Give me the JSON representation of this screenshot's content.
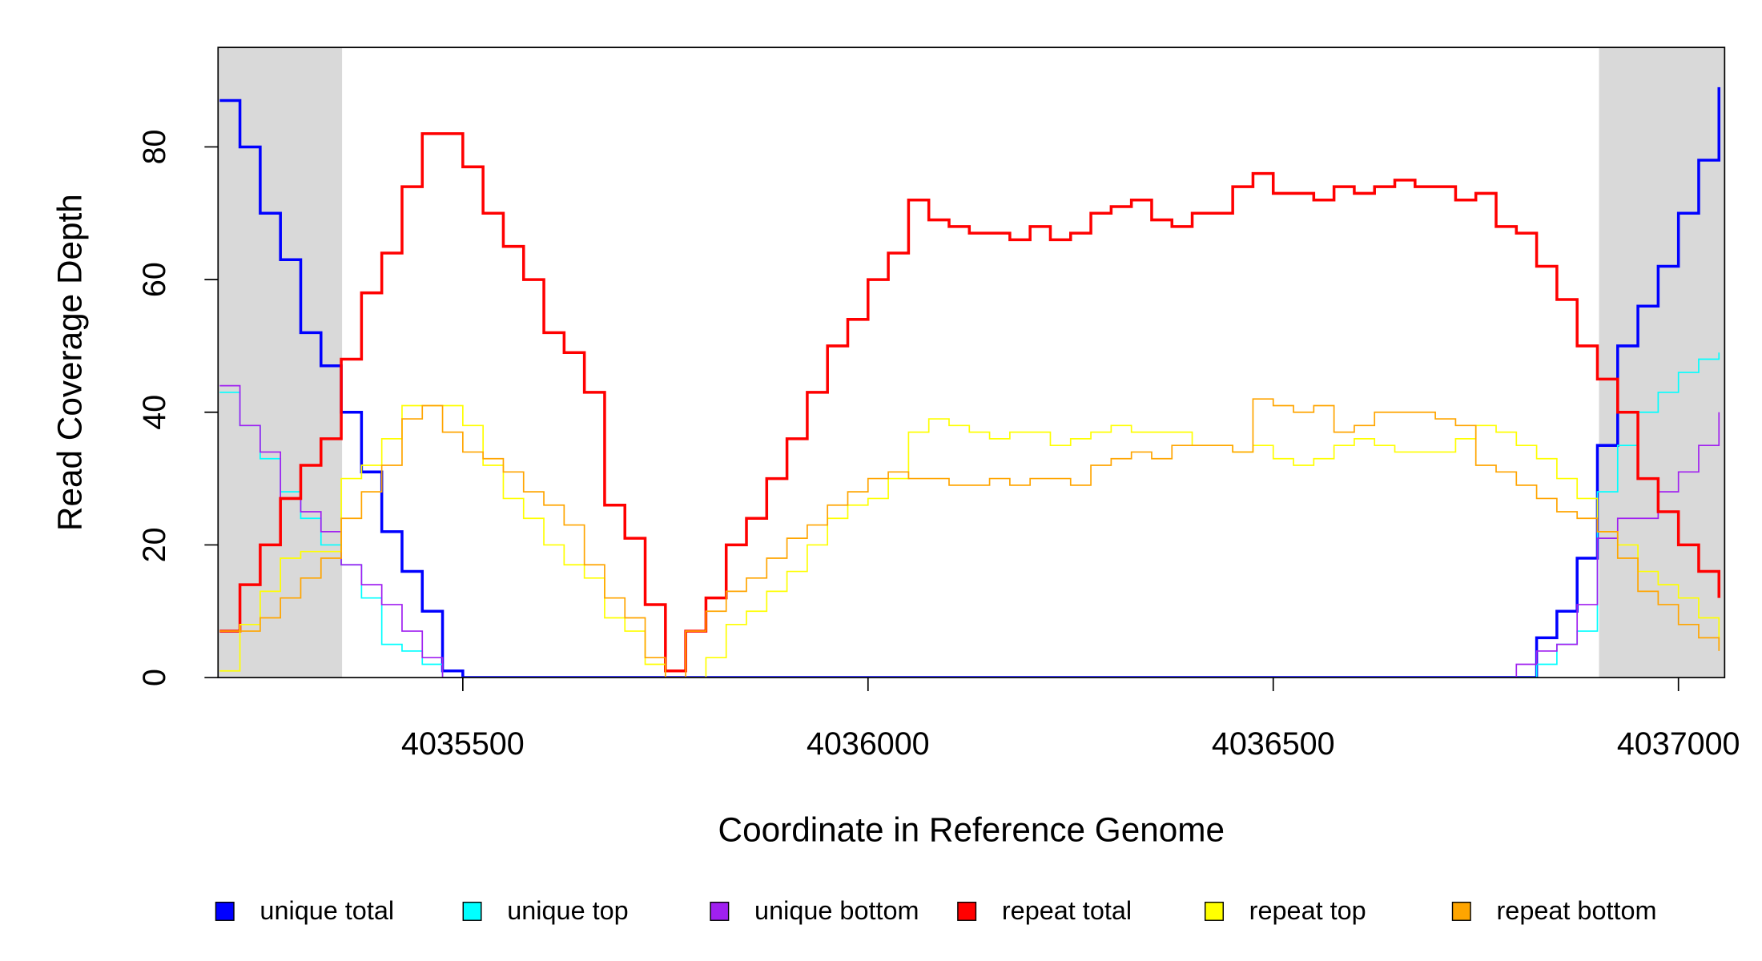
{
  "chart_data": {
    "type": "step",
    "xlabel": "Coordinate in Reference Genome",
    "ylabel": "Read Coverage Depth",
    "xlim": [
      4035198,
      4037057
    ],
    "ylim": [
      0,
      95
    ],
    "xticks": [
      4035500,
      4036000,
      4036500,
      4037000
    ],
    "yticks": [
      0,
      20,
      40,
      60,
      80
    ],
    "shaded_regions": [
      [
        4035198,
        4035351
      ],
      [
        4036902,
        4037057
      ]
    ],
    "shade_color": "#d9d9d9",
    "legend": "bottom",
    "x": [
      4035200,
      4035225,
      4035250,
      4035275,
      4035300,
      4035325,
      4035350,
      4035375,
      4035400,
      4035425,
      4035450,
      4035475,
      4035500,
      4035525,
      4035550,
      4035575,
      4035600,
      4035625,
      4035650,
      4035675,
      4035700,
      4035725,
      4035750,
      4035775,
      4035800,
      4035825,
      4035850,
      4035875,
      4035900,
      4035925,
      4035950,
      4035975,
      4036000,
      4036025,
      4036050,
      4036075,
      4036100,
      4036125,
      4036150,
      4036175,
      4036200,
      4036225,
      4036250,
      4036275,
      4036300,
      4036325,
      4036350,
      4036375,
      4036400,
      4036425,
      4036450,
      4036475,
      4036500,
      4036525,
      4036550,
      4036575,
      4036600,
      4036625,
      4036650,
      4036675,
      4036700,
      4036725,
      4036750,
      4036775,
      4036800,
      4036825,
      4036850,
      4036875,
      4036900,
      4036925,
      4036950,
      4036975,
      4037000,
      4037025,
      4037050
    ],
    "series": [
      {
        "name": "unique total",
        "color": "#0000ff",
        "width": 2.5,
        "values": [
          87,
          80,
          70,
          63,
          52,
          47,
          40,
          31,
          22,
          16,
          10,
          1,
          0,
          0,
          0,
          0,
          0,
          0,
          0,
          0,
          0,
          0,
          0,
          0,
          0,
          0,
          0,
          0,
          0,
          0,
          0,
          0,
          0,
          0,
          0,
          0,
          0,
          0,
          0,
          0,
          0,
          0,
          0,
          0,
          0,
          0,
          0,
          0,
          0,
          0,
          0,
          0,
          0,
          0,
          0,
          0,
          0,
          0,
          0,
          0,
          0,
          0,
          0,
          0,
          0,
          6,
          10,
          18,
          35,
          50,
          56,
          62,
          70,
          78,
          89
        ]
      },
      {
        "name": "unique top",
        "color": "#00ffff",
        "width": 1.2,
        "values": [
          43,
          38,
          33,
          28,
          24,
          20,
          17,
          12,
          5,
          4,
          2,
          0,
          0,
          0,
          0,
          0,
          0,
          0,
          0,
          0,
          0,
          0,
          0,
          0,
          0,
          0,
          0,
          0,
          0,
          0,
          0,
          0,
          0,
          0,
          0,
          0,
          0,
          0,
          0,
          0,
          0,
          0,
          0,
          0,
          0,
          0,
          0,
          0,
          0,
          0,
          0,
          0,
          0,
          0,
          0,
          0,
          0,
          0,
          0,
          0,
          0,
          0,
          0,
          0,
          0,
          2,
          5,
          7,
          28,
          35,
          40,
          43,
          46,
          48,
          49
        ]
      },
      {
        "name": "unique bottom",
        "color": "#a020f0",
        "width": 1.2,
        "values": [
          44,
          38,
          34,
          27,
          25,
          22,
          17,
          14,
          11,
          7,
          3,
          0,
          0,
          0,
          0,
          0,
          0,
          0,
          0,
          0,
          0,
          0,
          0,
          0,
          0,
          0,
          0,
          0,
          0,
          0,
          0,
          0,
          0,
          0,
          0,
          0,
          0,
          0,
          0,
          0,
          0,
          0,
          0,
          0,
          0,
          0,
          0,
          0,
          0,
          0,
          0,
          0,
          0,
          0,
          0,
          0,
          0,
          0,
          0,
          0,
          0,
          0,
          0,
          0,
          2,
          4,
          5,
          11,
          21,
          24,
          24,
          28,
          31,
          35,
          40
        ]
      },
      {
        "name": "repeat total",
        "color": "#ff0000",
        "width": 2.5,
        "values": [
          7,
          14,
          20,
          27,
          32,
          36,
          48,
          58,
          64,
          74,
          82,
          82,
          77,
          70,
          65,
          60,
          52,
          49,
          43,
          26,
          21,
          11,
          1,
          7,
          12,
          20,
          24,
          30,
          36,
          43,
          50,
          54,
          60,
          64,
          72,
          69,
          68,
          67,
          67,
          66,
          68,
          66,
          67,
          70,
          71,
          72,
          69,
          68,
          70,
          70,
          74,
          76,
          73,
          73,
          72,
          74,
          73,
          74,
          75,
          74,
          74,
          72,
          73,
          68,
          67,
          62,
          57,
          50,
          45,
          40,
          30,
          25,
          20,
          16,
          12
        ]
      },
      {
        "name": "repeat top",
        "color": "#ffff00",
        "width": 1.2,
        "values": [
          1,
          8,
          13,
          18,
          19,
          19,
          30,
          32,
          36,
          41,
          41,
          41,
          38,
          32,
          27,
          24,
          20,
          17,
          15,
          9,
          7,
          2,
          0,
          0,
          3,
          8,
          10,
          13,
          16,
          20,
          24,
          26,
          27,
          30,
          37,
          39,
          38,
          37,
          36,
          37,
          37,
          35,
          36,
          37,
          38,
          37,
          37,
          37,
          35,
          35,
          34,
          35,
          33,
          32,
          33,
          35,
          36,
          35,
          34,
          34,
          34,
          36,
          38,
          37,
          35,
          33,
          30,
          27,
          22,
          20,
          16,
          14,
          12,
          9,
          5
        ]
      },
      {
        "name": "repeat bottom",
        "color": "#ffa500",
        "width": 1.2,
        "values": [
          7,
          7,
          9,
          12,
          15,
          18,
          24,
          28,
          32,
          39,
          41,
          37,
          34,
          33,
          31,
          28,
          26,
          23,
          17,
          12,
          9,
          3,
          0,
          7,
          10,
          13,
          15,
          18,
          21,
          23,
          26,
          28,
          30,
          31,
          30,
          30,
          29,
          29,
          30,
          29,
          30,
          30,
          29,
          32,
          33,
          34,
          33,
          35,
          35,
          35,
          34,
          42,
          41,
          40,
          41,
          37,
          38,
          40,
          40,
          40,
          39,
          38,
          32,
          31,
          29,
          27,
          25,
          24,
          22,
          18,
          13,
          11,
          8,
          6,
          4
        ]
      }
    ]
  }
}
